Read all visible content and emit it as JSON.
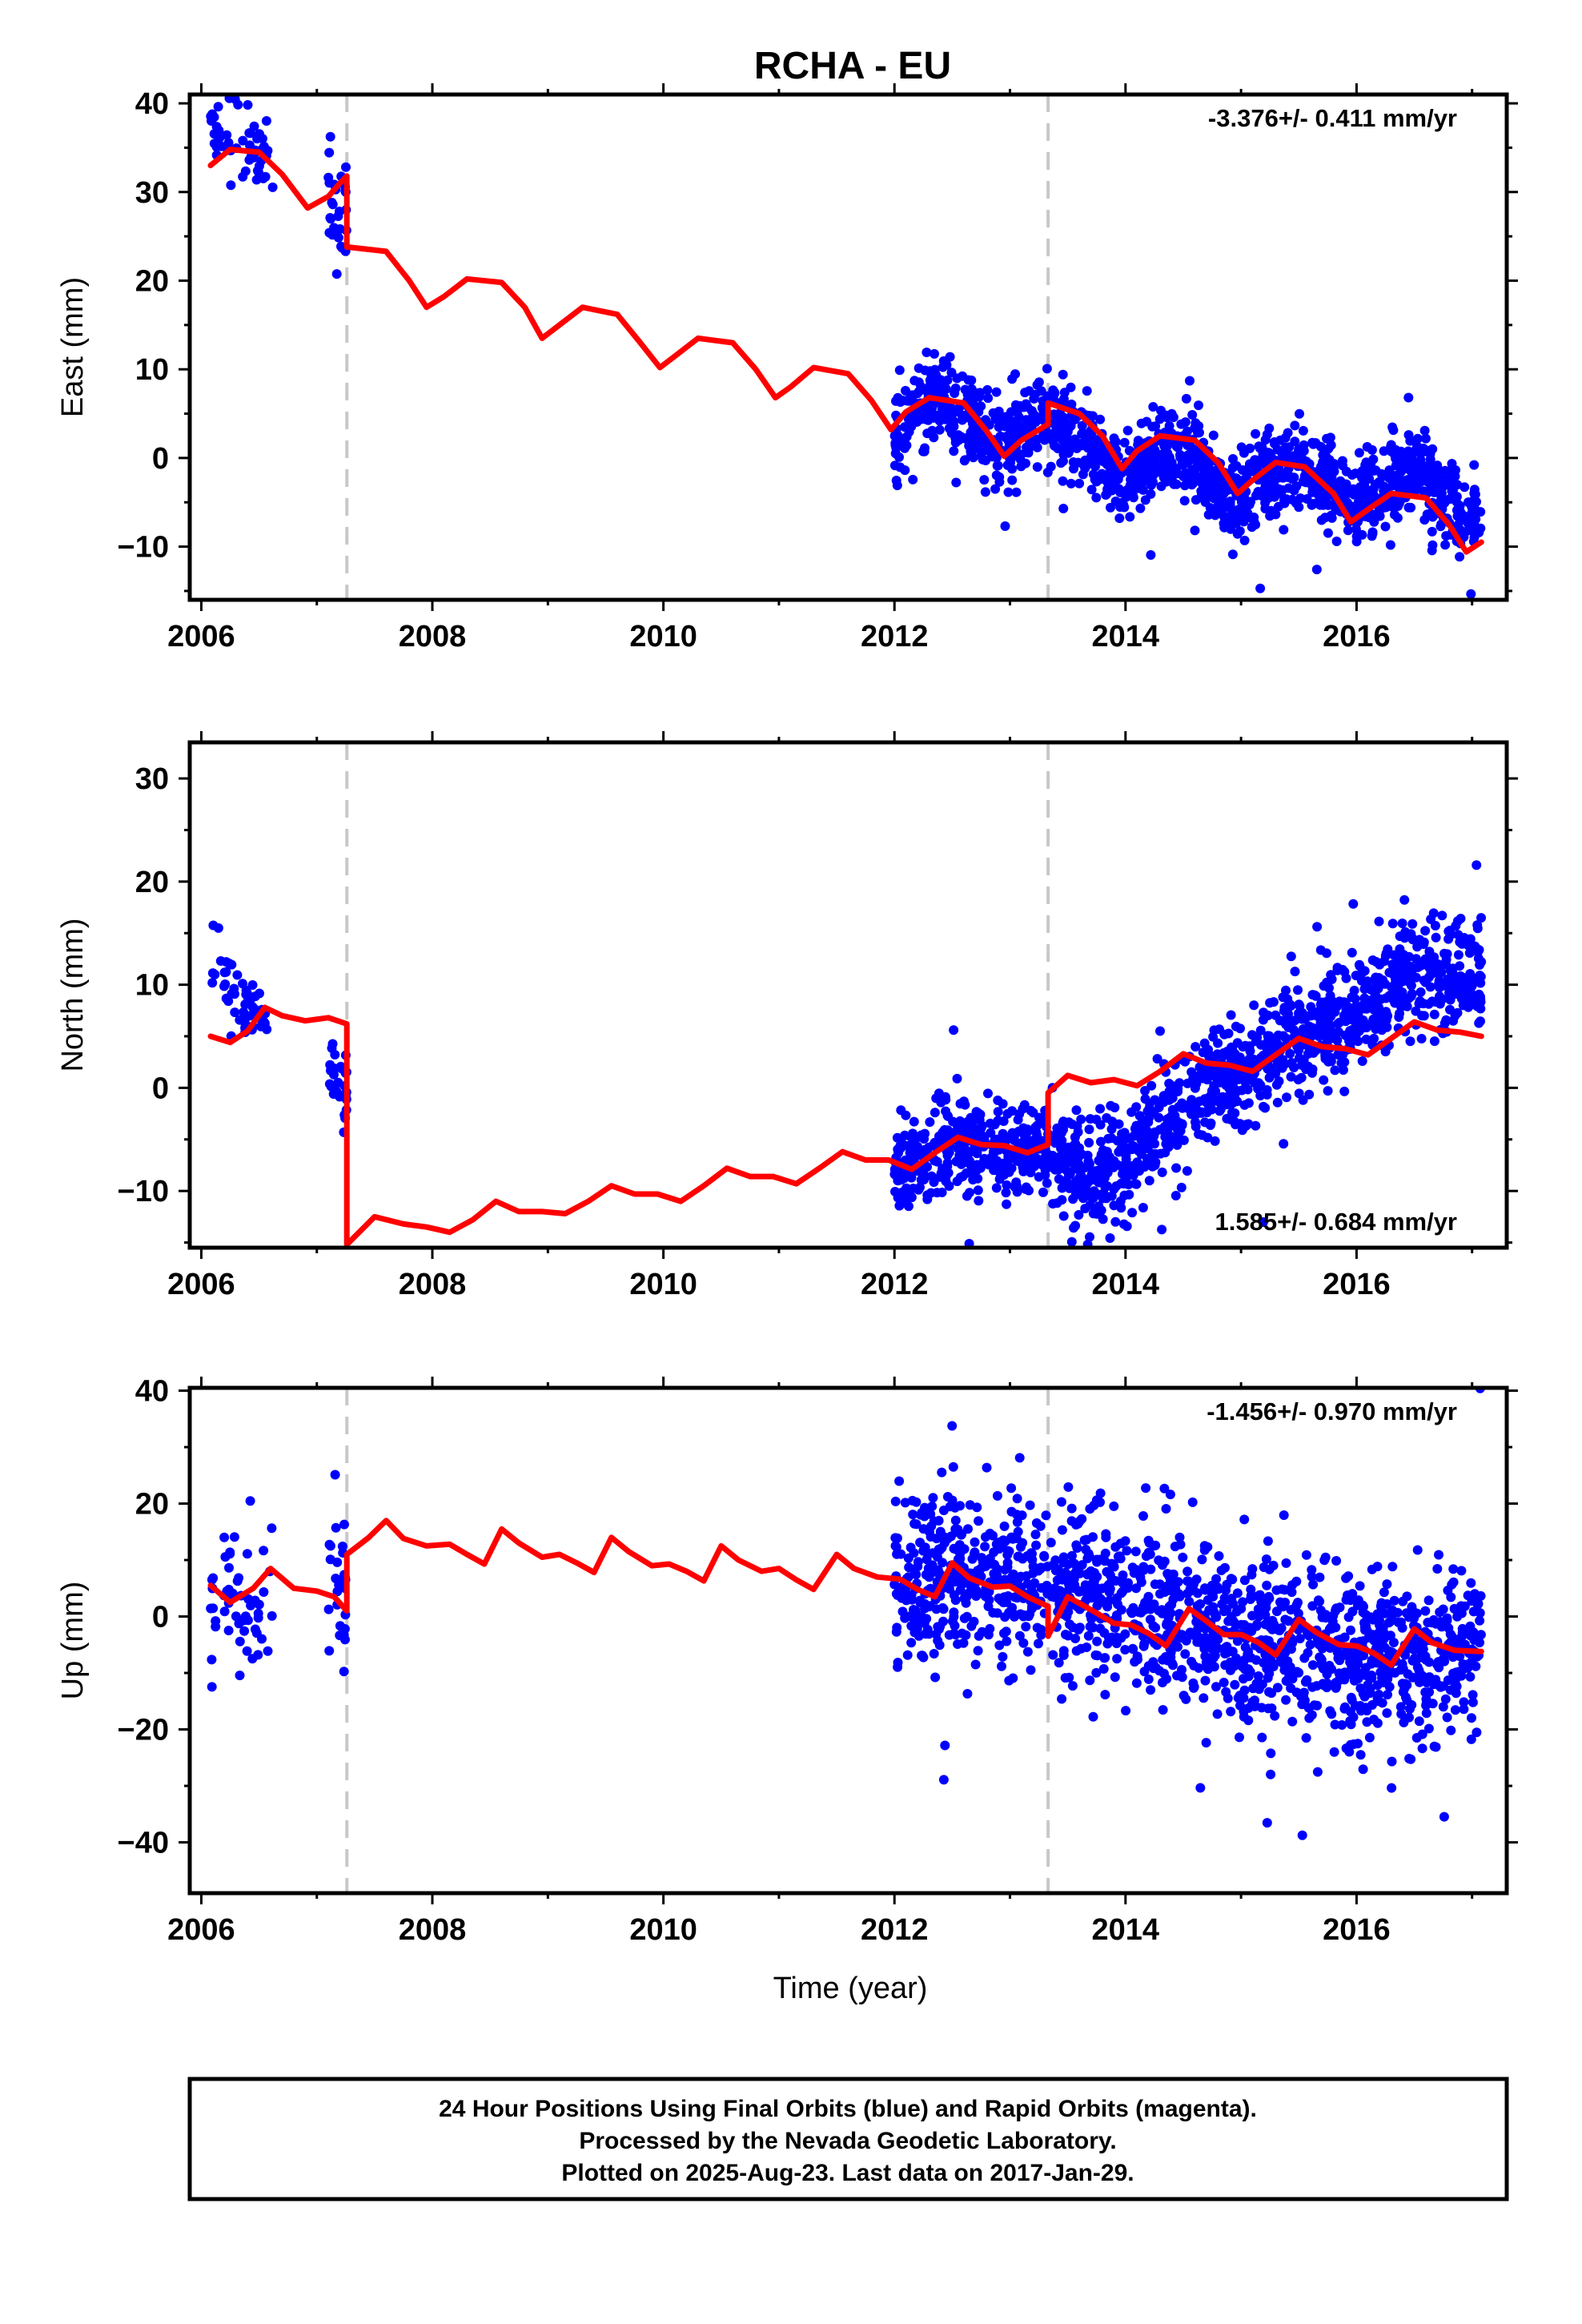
{
  "title": "RCHA - EU",
  "xlabel": "Time (year)",
  "footer": {
    "line1": "24 Hour Positions Using Final Orbits (blue) and Rapid Orbits (magenta).",
    "line2": "Processed by the Nevada Geodetic Laboratory.",
    "line3": "Plotted on 2025-Aug-23. Last data on 2017-Jan-29."
  },
  "colors": {
    "data": "#0000ff",
    "model": "#ff0000",
    "break_line": "#c8c8c8",
    "axis": "#000000"
  },
  "chart_data": [
    {
      "type": "scatter",
      "panel": "east",
      "ylabel": "East (mm)",
      "xlim": [
        2005.9,
        2017.3
      ],
      "ylim": [
        -16,
        41
      ],
      "xticks": [
        2006,
        2008,
        2010,
        2012,
        2014,
        2016
      ],
      "yticks": [
        -10,
        0,
        10,
        20,
        30,
        40
      ],
      "grid": false,
      "rate_text": "-3.376+/- 0.411 mm/yr",
      "rate_position": "top-right",
      "breaks": [
        2007.26,
        2013.33
      ],
      "data_segments": [
        {
          "start": 2006.08,
          "end": 2006.62,
          "center": [
            [
              2006.08,
              36.5
            ],
            [
              2006.3,
              35.5
            ],
            [
              2006.62,
              34
            ]
          ],
          "spread": 2.2,
          "n": 55
        },
        {
          "start": 2007.1,
          "end": 2007.26,
          "center": [
            [
              2007.1,
              29
            ],
            [
              2007.26,
              26
            ]
          ],
          "spread": 2.3,
          "n": 30
        },
        {
          "start": 2012.0,
          "end": 2013.33,
          "center": [
            [
              2012.0,
              2.5
            ],
            [
              2012.3,
              6.5
            ],
            [
              2012.6,
              5
            ],
            [
              2012.9,
              1.5
            ],
            [
              2013.2,
              3.5
            ],
            [
              2013.33,
              5
            ]
          ],
          "spread": 2.4,
          "n": 380
        },
        {
          "start": 2013.35,
          "end": 2017.08,
          "center": [
            [
              2013.35,
              4
            ],
            [
              2013.7,
              1
            ],
            [
              2014.0,
              -3
            ],
            [
              2014.3,
              0.5
            ],
            [
              2014.6,
              0
            ],
            [
              2014.9,
              -5
            ],
            [
              2015.2,
              -2
            ],
            [
              2015.5,
              -0.5
            ],
            [
              2015.8,
              -3
            ],
            [
              2016.0,
              -5
            ],
            [
              2016.3,
              -2.5
            ],
            [
              2016.5,
              -1
            ],
            [
              2016.8,
              -5
            ],
            [
              2017.08,
              -7
            ]
          ],
          "spread": 2.4,
          "n": 1100
        }
      ],
      "model": [
        [
          2006.08,
          33
        ],
        [
          2006.25,
          34.8
        ],
        [
          2006.5,
          34.5
        ],
        [
          2006.7,
          32
        ],
        [
          2006.92,
          28.2
        ],
        [
          2007.1,
          29.5
        ],
        [
          2007.2,
          31
        ],
        [
          2007.26,
          31.8
        ],
        [
          2007.26,
          23.8
        ],
        [
          2007.6,
          23.3
        ],
        [
          2007.8,
          20
        ],
        [
          2007.95,
          17
        ],
        [
          2008.1,
          18.2
        ],
        [
          2008.3,
          20.2
        ],
        [
          2008.6,
          19.8
        ],
        [
          2008.8,
          17
        ],
        [
          2008.95,
          13.5
        ],
        [
          2009.1,
          15
        ],
        [
          2009.3,
          17
        ],
        [
          2009.6,
          16.2
        ],
        [
          2009.8,
          13
        ],
        [
          2009.97,
          10.2
        ],
        [
          2010.1,
          11.5
        ],
        [
          2010.3,
          13.5
        ],
        [
          2010.6,
          13
        ],
        [
          2010.8,
          10
        ],
        [
          2010.97,
          6.8
        ],
        [
          2011.1,
          8
        ],
        [
          2011.3,
          10.2
        ],
        [
          2011.6,
          9.5
        ],
        [
          2011.8,
          6.5
        ],
        [
          2011.97,
          3.2
        ],
        [
          2012.1,
          5.2
        ],
        [
          2012.3,
          6.8
        ],
        [
          2012.6,
          6.2
        ],
        [
          2012.8,
          3
        ],
        [
          2012.95,
          0.2
        ],
        [
          2013.1,
          2
        ],
        [
          2013.33,
          3.8
        ],
        [
          2013.33,
          6.2
        ],
        [
          2013.6,
          5
        ],
        [
          2013.8,
          2.5
        ],
        [
          2013.97,
          -1.2
        ],
        [
          2014.1,
          0.8
        ],
        [
          2014.3,
          2.5
        ],
        [
          2014.6,
          2
        ],
        [
          2014.8,
          -0.5
        ],
        [
          2014.97,
          -4
        ],
        [
          2015.1,
          -2.5
        ],
        [
          2015.3,
          -0.5
        ],
        [
          2015.55,
          -1
        ],
        [
          2015.8,
          -4
        ],
        [
          2015.95,
          -7.2
        ],
        [
          2016.1,
          -5.8
        ],
        [
          2016.3,
          -4
        ],
        [
          2016.6,
          -4.5
        ],
        [
          2016.8,
          -7.5
        ],
        [
          2016.95,
          -10.6
        ],
        [
          2017.08,
          -9.5
        ]
      ]
    },
    {
      "type": "scatter",
      "panel": "north",
      "ylabel": "North (mm)",
      "xlim": [
        2005.9,
        2017.3
      ],
      "ylim": [
        -15.5,
        33.5
      ],
      "xticks": [
        2006,
        2008,
        2010,
        2012,
        2014,
        2016
      ],
      "yticks": [
        -10,
        0,
        10,
        20,
        30
      ],
      "grid": false,
      "rate_text": "1.585+/- 0.684 mm/yr",
      "rate_position": "bottom-right",
      "breaks": [
        2007.26,
        2013.33
      ],
      "data_segments": [
        {
          "start": 2006.08,
          "end": 2006.62,
          "center": [
            [
              2006.08,
              12.5
            ],
            [
              2006.3,
              9
            ],
            [
              2006.62,
              6
            ]
          ],
          "spread": 1.8,
          "n": 55
        },
        {
          "start": 2007.1,
          "end": 2007.26,
          "center": [
            [
              2007.1,
              2
            ],
            [
              2007.26,
              0
            ]
          ],
          "spread": 1.8,
          "n": 30
        },
        {
          "start": 2012.0,
          "end": 2013.33,
          "center": [
            [
              2012.0,
              -8
            ],
            [
              2012.5,
              -5.5
            ],
            [
              2013.0,
              -6.5
            ],
            [
              2013.33,
              -5
            ]
          ],
          "spread": 2.2,
          "n": 380
        },
        {
          "start": 2013.35,
          "end": 2017.08,
          "center": [
            [
              2013.35,
              -6
            ],
            [
              2013.7,
              -9
            ],
            [
              2014.0,
              -7
            ],
            [
              2014.4,
              -3
            ],
            [
              2014.7,
              0
            ],
            [
              2015.0,
              2
            ],
            [
              2015.4,
              5
            ],
            [
              2015.8,
              6.5
            ],
            [
              2016.1,
              8
            ],
            [
              2016.4,
              11
            ],
            [
              2016.7,
              11.5
            ],
            [
              2017.08,
              11
            ]
          ],
          "spread": 2.6,
          "n": 1100
        }
      ],
      "model": [
        [
          2006.08,
          5
        ],
        [
          2006.25,
          4.4
        ],
        [
          2006.4,
          5.5
        ],
        [
          2006.55,
          7.8
        ],
        [
          2006.7,
          7
        ],
        [
          2006.9,
          6.5
        ],
        [
          2007.1,
          6.8
        ],
        [
          2007.26,
          6.2
        ],
        [
          2007.26,
          -15.2
        ],
        [
          2007.5,
          -12.5
        ],
        [
          2007.75,
          -13.2
        ],
        [
          2007.95,
          -13.5
        ],
        [
          2008.15,
          -14
        ],
        [
          2008.35,
          -12.8
        ],
        [
          2008.55,
          -11
        ],
        [
          2008.75,
          -12
        ],
        [
          2008.95,
          -12
        ],
        [
          2009.15,
          -12.2
        ],
        [
          2009.35,
          -11
        ],
        [
          2009.55,
          -9.5
        ],
        [
          2009.75,
          -10.3
        ],
        [
          2009.95,
          -10.3
        ],
        [
          2010.15,
          -11
        ],
        [
          2010.35,
          -9.5
        ],
        [
          2010.55,
          -7.8
        ],
        [
          2010.75,
          -8.6
        ],
        [
          2010.95,
          -8.6
        ],
        [
          2011.15,
          -9.3
        ],
        [
          2011.35,
          -7.8
        ],
        [
          2011.55,
          -6.2
        ],
        [
          2011.75,
          -7
        ],
        [
          2011.95,
          -7
        ],
        [
          2012.15,
          -7.9
        ],
        [
          2012.35,
          -6.3
        ],
        [
          2012.55,
          -4.8
        ],
        [
          2012.75,
          -5.5
        ],
        [
          2012.95,
          -5.6
        ],
        [
          2013.15,
          -6.3
        ],
        [
          2013.33,
          -5.5
        ],
        [
          2013.33,
          -0.5
        ],
        [
          2013.5,
          1.2
        ],
        [
          2013.7,
          0.5
        ],
        [
          2013.9,
          0.8
        ],
        [
          2014.1,
          0.2
        ],
        [
          2014.3,
          1.6
        ],
        [
          2014.5,
          3.3
        ],
        [
          2014.7,
          2.4
        ],
        [
          2014.9,
          2.2
        ],
        [
          2015.1,
          1.6
        ],
        [
          2015.3,
          3.2
        ],
        [
          2015.5,
          4.8
        ],
        [
          2015.7,
          4
        ],
        [
          2015.9,
          3.8
        ],
        [
          2016.1,
          3.2
        ],
        [
          2016.3,
          4.8
        ],
        [
          2016.5,
          6.4
        ],
        [
          2016.7,
          5.6
        ],
        [
          2016.9,
          5.4
        ],
        [
          2017.08,
          5
        ]
      ]
    },
    {
      "type": "scatter",
      "panel": "up",
      "ylabel": "Up (mm)",
      "xlim": [
        2005.9,
        2017.3
      ],
      "ylim": [
        -49,
        40.5
      ],
      "xticks": [
        2006,
        2008,
        2010,
        2012,
        2014,
        2016
      ],
      "yticks": [
        -40,
        -20,
        0,
        20,
        40
      ],
      "grid": false,
      "rate_text": "-1.456+/- 0.970 mm/yr",
      "rate_position": "top-right",
      "breaks": [
        2007.26,
        2013.33
      ],
      "data_segments": [
        {
          "start": 2006.08,
          "end": 2006.62,
          "center": [
            [
              2006.08,
              2
            ],
            [
              2006.62,
              2
            ]
          ],
          "spread": 6,
          "n": 55
        },
        {
          "start": 2007.1,
          "end": 2007.26,
          "center": [
            [
              2007.1,
              6
            ],
            [
              2007.26,
              4
            ]
          ],
          "spread": 8,
          "n": 30
        },
        {
          "start": 2012.0,
          "end": 2013.33,
          "center": [
            [
              2012.0,
              5
            ],
            [
              2012.5,
              8
            ],
            [
              2013.33,
              5
            ]
          ],
          "spread": 7,
          "n": 380
        },
        {
          "start": 2013.35,
          "end": 2017.08,
          "center": [
            [
              2013.35,
              5
            ],
            [
              2014.0,
              3
            ],
            [
              2015.0,
              -4
            ],
            [
              2016.0,
              -8
            ],
            [
              2017.08,
              -6
            ]
          ],
          "spread": 7.5,
          "n": 1100
        }
      ],
      "model": [
        [
          2006.08,
          5.5
        ],
        [
          2006.25,
          2.5
        ],
        [
          2006.45,
          5
        ],
        [
          2006.6,
          8.5
        ],
        [
          2006.8,
          5
        ],
        [
          2007.0,
          4.5
        ],
        [
          2007.15,
          3.5
        ],
        [
          2007.26,
          1
        ],
        [
          2007.26,
          11
        ],
        [
          2007.45,
          14
        ],
        [
          2007.6,
          17
        ],
        [
          2007.75,
          13.8
        ],
        [
          2007.95,
          12.5
        ],
        [
          2008.15,
          12.8
        ],
        [
          2008.3,
          11
        ],
        [
          2008.45,
          9.3
        ],
        [
          2008.6,
          15.5
        ],
        [
          2008.75,
          13
        ],
        [
          2008.95,
          10.5
        ],
        [
          2009.1,
          11
        ],
        [
          2009.25,
          9.5
        ],
        [
          2009.4,
          7.8
        ],
        [
          2009.55,
          14
        ],
        [
          2009.7,
          11.5
        ],
        [
          2009.9,
          9
        ],
        [
          2010.05,
          9.3
        ],
        [
          2010.2,
          8
        ],
        [
          2010.35,
          6.3
        ],
        [
          2010.5,
          12.5
        ],
        [
          2010.65,
          10
        ],
        [
          2010.85,
          8
        ],
        [
          2011.0,
          8.5
        ],
        [
          2011.15,
          6.5
        ],
        [
          2011.3,
          4.8
        ],
        [
          2011.5,
          11
        ],
        [
          2011.65,
          8.5
        ],
        [
          2011.85,
          7
        ],
        [
          2012.05,
          6.6
        ],
        [
          2012.2,
          4.8
        ],
        [
          2012.35,
          3.5
        ],
        [
          2012.5,
          9.5
        ],
        [
          2012.65,
          6.8
        ],
        [
          2012.85,
          5.2
        ],
        [
          2013.0,
          5.4
        ],
        [
          2013.15,
          3.5
        ],
        [
          2013.33,
          1.8
        ],
        [
          2013.33,
          -3.5
        ],
        [
          2013.5,
          3.5
        ],
        [
          2013.7,
          1.2
        ],
        [
          2013.9,
          -1.2
        ],
        [
          2014.05,
          -1.5
        ],
        [
          2014.2,
          -3
        ],
        [
          2014.35,
          -5.2
        ],
        [
          2014.55,
          1.4
        ],
        [
          2014.7,
          -0.8
        ],
        [
          2014.85,
          -3.2
        ],
        [
          2015.0,
          -3.2
        ],
        [
          2015.15,
          -4.6
        ],
        [
          2015.3,
          -6.8
        ],
        [
          2015.5,
          -0.5
        ],
        [
          2015.65,
          -2.8
        ],
        [
          2015.85,
          -5
        ],
        [
          2016.0,
          -5.2
        ],
        [
          2016.15,
          -6.5
        ],
        [
          2016.3,
          -8.6
        ],
        [
          2016.5,
          -2.2
        ],
        [
          2016.65,
          -4.6
        ],
        [
          2016.85,
          -6
        ],
        [
          2017.08,
          -6.2
        ]
      ]
    }
  ]
}
